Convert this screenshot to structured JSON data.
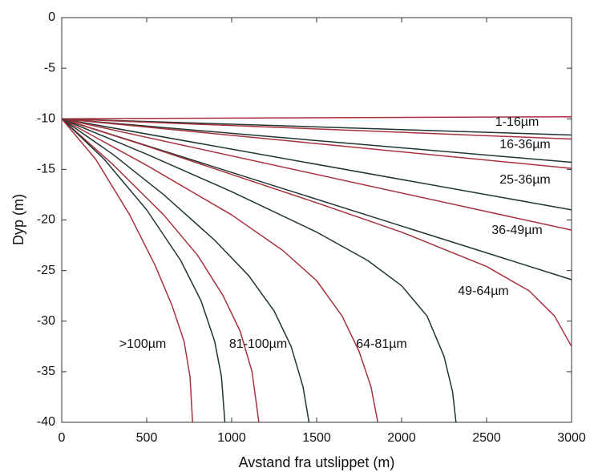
{
  "chart_data": {
    "type": "line",
    "xlabel": "Avstand fra utslippet (m)",
    "ylabel": "Dyp (m)",
    "xlim": [
      0,
      3000
    ],
    "ylim": [
      -40,
      0
    ],
    "xticks": [
      0,
      500,
      1000,
      1500,
      2000,
      2500,
      3000
    ],
    "yticks": [
      0,
      -5,
      -10,
      -15,
      -20,
      -25,
      -30,
      -35,
      -40
    ],
    "grid": false,
    "annotations": [
      "1-16µm",
      "16-36µm",
      "25-36µm",
      "36-49µm",
      "49-64µm",
      ">100µm",
      "81-100µm",
      "64-81µm"
    ],
    "series": [
      {
        "color": "#a8323c",
        "x": [
          0,
          3000
        ],
        "values": [
          -10,
          -9.8
        ]
      },
      {
        "color": "#1f3530",
        "x": [
          0,
          3000
        ],
        "values": [
          -10,
          -11.6
        ]
      },
      {
        "color": "#a8323c",
        "x": [
          0,
          3000
        ],
        "values": [
          -10,
          -12
        ]
      },
      {
        "color": "#1f3530",
        "x": [
          0,
          3000
        ],
        "values": [
          -10,
          -14.3
        ]
      },
      {
        "color": "#a8323c",
        "x": [
          0,
          3000
        ],
        "values": [
          -10,
          -14.9
        ]
      },
      {
        "color": "#1f3530",
        "x": [
          0,
          3000
        ],
        "values": [
          -10,
          -19
        ]
      },
      {
        "color": "#a8323c",
        "x": [
          0,
          3000
        ],
        "values": [
          -10,
          -21
        ]
      },
      {
        "color": "#1f3530",
        "x": [
          0,
          3000
        ],
        "values": [
          -10,
          -25.9
        ]
      },
      {
        "color": "#a8323c",
        "x": [
          0,
          500,
          1000,
          1500,
          2000,
          2500,
          2750,
          2900,
          3000
        ],
        "values": [
          -10,
          -12.7,
          -15.5,
          -18.3,
          -21.2,
          -24.6,
          -27,
          -29.5,
          -32.5
        ]
      },
      {
        "color": "#1f3530",
        "x": [
          0,
          500,
          1000,
          1500,
          1800,
          2000,
          2150,
          2250,
          2300,
          2320
        ],
        "values": [
          -10,
          -13.5,
          -17.2,
          -21.2,
          -24,
          -26.5,
          -29.5,
          -33.5,
          -37,
          -40
        ]
      },
      {
        "color": "#a8323c",
        "x": [
          0,
          500,
          1000,
          1300,
          1500,
          1650,
          1750,
          1820,
          1860
        ],
        "values": [
          -10,
          -14.6,
          -19.5,
          -23,
          -26,
          -29.5,
          -33,
          -36.5,
          -40
        ]
      },
      {
        "color": "#1f3530",
        "x": [
          0,
          300,
          600,
          900,
          1100,
          1250,
          1350,
          1420,
          1455
        ],
        "values": [
          -10,
          -13.5,
          -17.5,
          -22,
          -25.5,
          -29,
          -32.5,
          -36.5,
          -40
        ]
      },
      {
        "color": "#a8323c",
        "x": [
          0,
          300,
          600,
          800,
          950,
          1050,
          1120,
          1160
        ],
        "values": [
          -10,
          -14.5,
          -19.5,
          -23.5,
          -27.5,
          -31,
          -35,
          -40
        ]
      },
      {
        "color": "#1f3530",
        "x": [
          0,
          250,
          500,
          700,
          820,
          900,
          940,
          960
        ],
        "values": [
          -10,
          -14,
          -19,
          -24,
          -28,
          -32,
          -35.5,
          -40
        ]
      },
      {
        "color": "#a8323c",
        "x": [
          0,
          200,
          400,
          550,
          650,
          720,
          755,
          770
        ],
        "values": [
          -10,
          -14,
          -19.5,
          -24.5,
          -28.5,
          -32,
          -35.5,
          -40
        ]
      }
    ]
  }
}
